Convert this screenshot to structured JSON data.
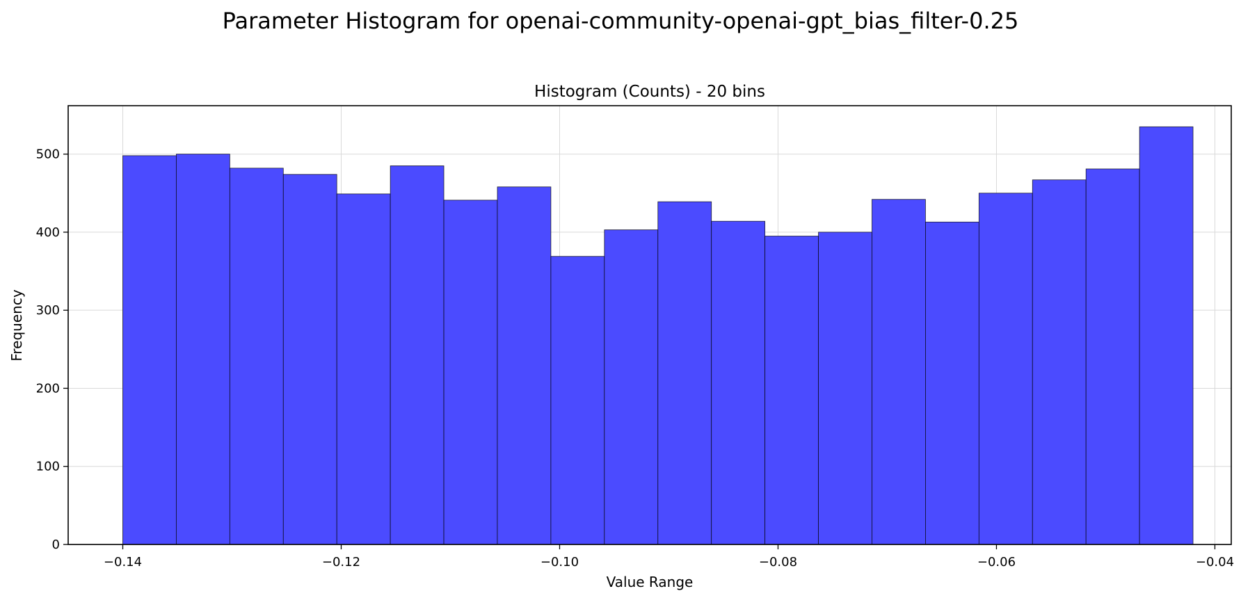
{
  "suptitle": "Parameter Histogram for openai-community-openai-gpt_bias_filter-0.25",
  "chart_data": {
    "type": "bar",
    "title": "Histogram (Counts) - 20 bins",
    "xlabel": "Value Range",
    "ylabel": "Frequency",
    "bins": 20,
    "bin_edges": [
      -0.14,
      -0.1351,
      -0.1302,
      -0.1253,
      -0.1204,
      -0.1155,
      -0.1106,
      -0.1057,
      -0.1008,
      -0.0959,
      -0.091,
      -0.0861,
      -0.0812,
      -0.0763,
      -0.0714,
      -0.0665,
      -0.0616,
      -0.0567,
      -0.0518,
      -0.0469,
      -0.042
    ],
    "values": [
      498,
      500,
      482,
      474,
      449,
      485,
      441,
      458,
      369,
      403,
      439,
      414,
      395,
      400,
      442,
      413,
      450,
      467,
      481,
      535
    ],
    "xlim": [
      -0.145,
      -0.0385
    ],
    "ylim": [
      0,
      562
    ],
    "xticks": [
      -0.14,
      -0.12,
      -0.1,
      -0.08,
      -0.06,
      -0.04
    ],
    "xtick_labels": [
      "−0.14",
      "−0.12",
      "−0.10",
      "−0.08",
      "−0.06",
      "−0.04"
    ],
    "yticks": [
      0,
      100,
      200,
      300,
      400,
      500
    ],
    "ytick_labels": [
      "0",
      "100",
      "200",
      "300",
      "400",
      "500"
    ],
    "grid": true,
    "bar_color": "#4b4bff",
    "edge_color": "#000000"
  }
}
